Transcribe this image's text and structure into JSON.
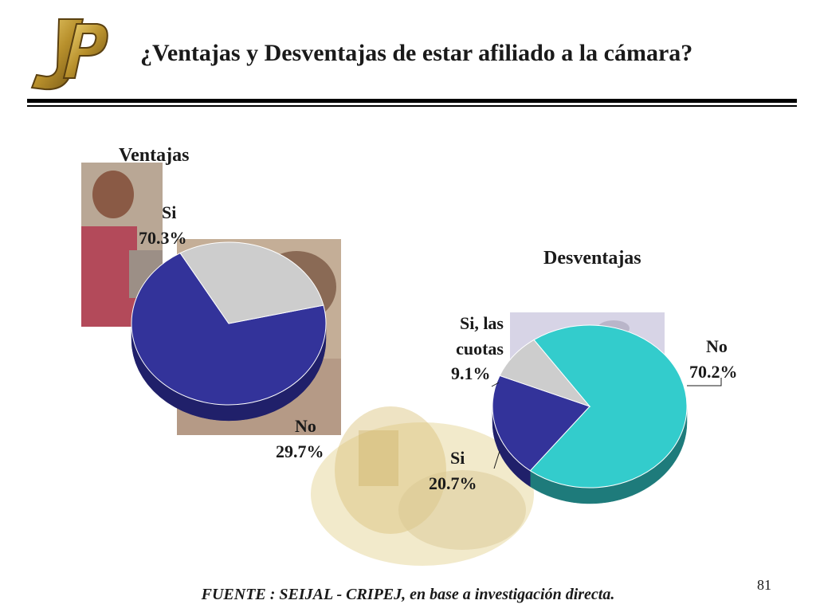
{
  "slide": {
    "title": "¿Ventajas y Desventajas de estar afiliado a la cámara?",
    "source": "FUENTE : SEIJAL - CRIPEJ, en base a investigación directa.",
    "page_number": "81"
  },
  "logo": {
    "letters": "JP"
  },
  "colors": {
    "navy": "#33339a",
    "navy_side": "#20206a",
    "gray": "#cdcdcd",
    "gray_side": "#8e8e8e",
    "cyan": "#33cccc",
    "cyan_side": "#1e7b7b"
  },
  "chart_data": [
    {
      "type": "pie",
      "title": "Ventajas",
      "slices": [
        {
          "label": "Si",
          "value": 70.3,
          "value_text": "70.3%",
          "color": "#33339a",
          "side_color": "#20206a"
        },
        {
          "label": "No",
          "value": 29.7,
          "value_text": "29.7%",
          "color": "#cdcdcd",
          "side_color": "#8e8e8e"
        }
      ]
    },
    {
      "type": "pie",
      "title": "Desventajas",
      "slices": [
        {
          "label": "No",
          "value": 70.2,
          "value_text": "70.2%",
          "color": "#33cccc",
          "side_color": "#1e7b7b"
        },
        {
          "label": "Si",
          "value": 20.7,
          "value_text": "20.7%",
          "color": "#33339a",
          "side_color": "#20206a"
        },
        {
          "label": "Si, las cuotas",
          "value": 9.1,
          "value_text": "9.1%",
          "color": "#cdcdcd",
          "side_color": "#8e8e8e"
        }
      ]
    }
  ]
}
